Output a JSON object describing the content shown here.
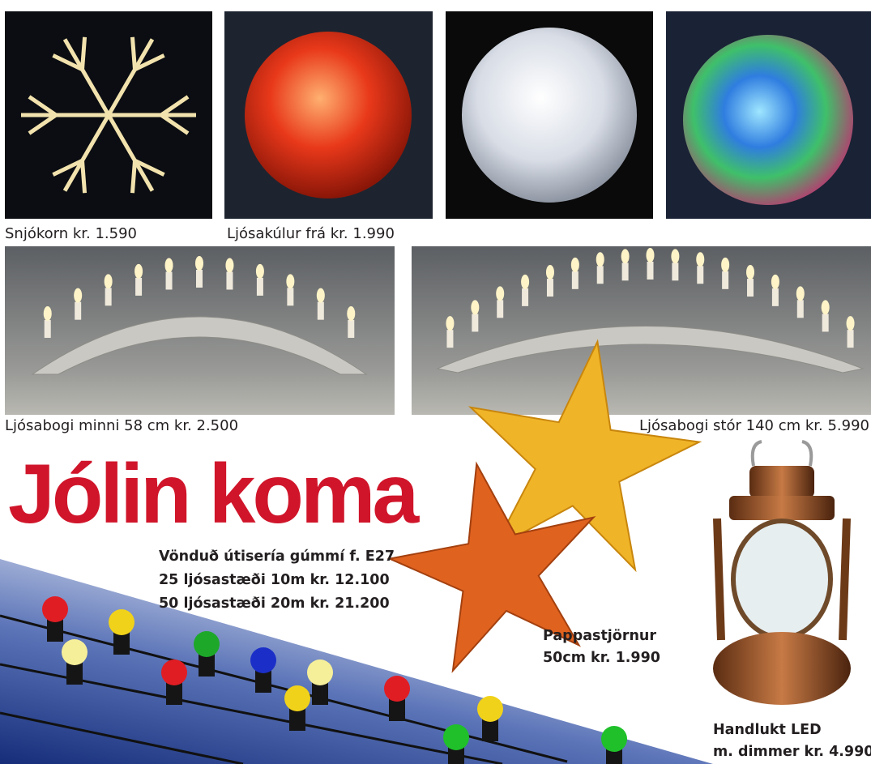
{
  "products_top": [
    {
      "caption": "Snjókorn kr. 1.590"
    },
    {
      "caption": "Ljósakúlur frá kr. 1.990"
    }
  ],
  "products_arch": [
    {
      "caption": "Ljósabogi minni 58 cm kr. 2.500"
    },
    {
      "caption": "Ljósabogi stór 140 cm kr. 5.990"
    }
  ],
  "headline": "Jólin koma",
  "string_lights": {
    "lines": [
      "Vönduð útisería gúmmí f. E27",
      "25 ljósastæði 10m kr. 12.100",
      "50 ljósastæði 20m kr. 21.200"
    ]
  },
  "paper_stars": {
    "lines": [
      "Pappastjörnur",
      "50cm kr. 1.990"
    ]
  },
  "lantern": {
    "lines": [
      "Handlukt LED",
      "m. dimmer kr. 4.990"
    ]
  }
}
